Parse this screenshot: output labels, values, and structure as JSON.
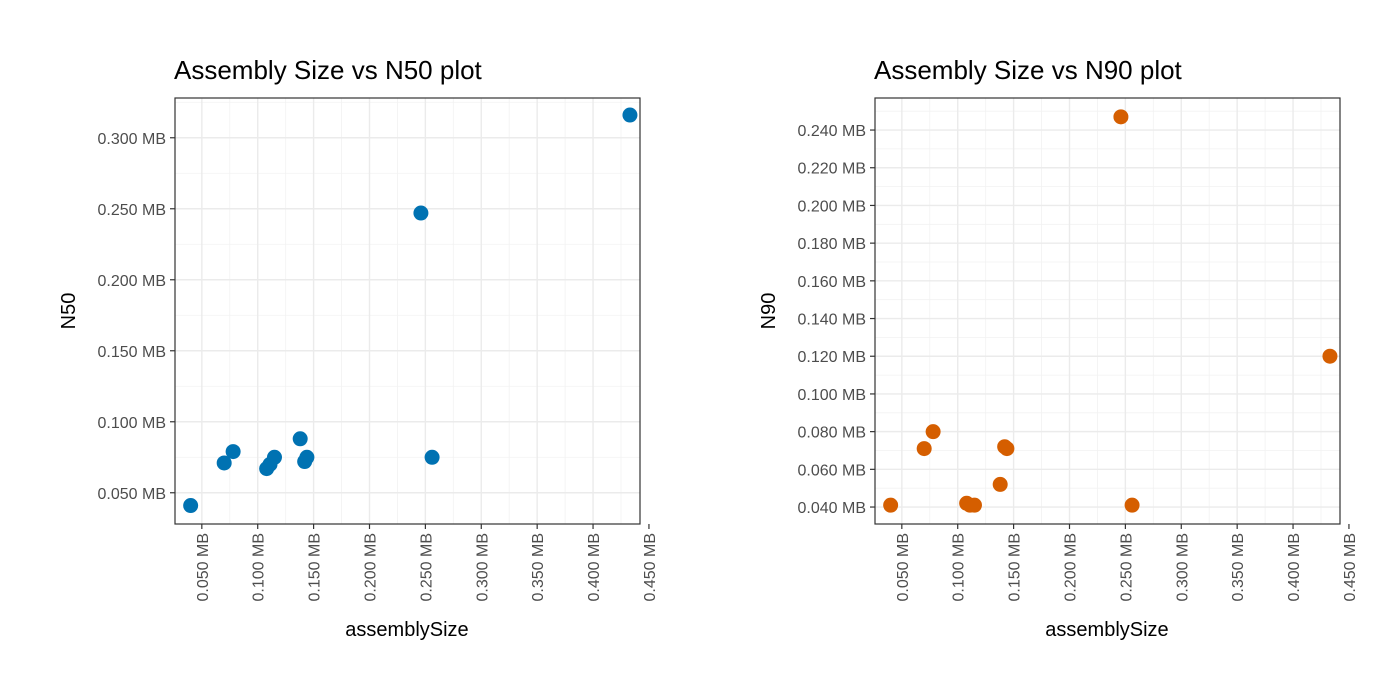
{
  "chart_data": [
    {
      "type": "scatter",
      "title": "Assembly Size vs N50 plot",
      "xlabel": "assemblySize",
      "ylabel": "N50",
      "color": "#0072B2",
      "xlim": [
        0.026,
        0.442
      ],
      "ylim": [
        0.028,
        0.328
      ],
      "x_ticks": [
        0.05,
        0.1,
        0.15,
        0.2,
        0.25,
        0.3,
        0.35,
        0.4,
        0.45
      ],
      "x_tick_labels": [
        "0.050 MB",
        "0.100 MB",
        "0.150 MB",
        "0.200 MB",
        "0.250 MB",
        "0.300 MB",
        "0.350 MB",
        "0.400 MB",
        "0.450 MB"
      ],
      "y_ticks": [
        0.05,
        0.1,
        0.15,
        0.2,
        0.25,
        0.3
      ],
      "y_tick_labels": [
        "0.050 MB",
        "0.100 MB",
        "0.150 MB",
        "0.200 MB",
        "0.250 MB",
        "0.300 MB"
      ],
      "grid": true,
      "points": [
        {
          "x": 0.04,
          "y": 0.041
        },
        {
          "x": 0.07,
          "y": 0.071
        },
        {
          "x": 0.078,
          "y": 0.079
        },
        {
          "x": 0.108,
          "y": 0.067
        },
        {
          "x": 0.111,
          "y": 0.07
        },
        {
          "x": 0.115,
          "y": 0.075
        },
        {
          "x": 0.138,
          "y": 0.088
        },
        {
          "x": 0.142,
          "y": 0.072
        },
        {
          "x": 0.144,
          "y": 0.075
        },
        {
          "x": 0.246,
          "y": 0.247
        },
        {
          "x": 0.256,
          "y": 0.075
        },
        {
          "x": 0.433,
          "y": 0.316
        }
      ]
    },
    {
      "type": "scatter",
      "title": "Assembly Size vs N90 plot",
      "xlabel": "assemblySize",
      "ylabel": "N90",
      "color": "#D55E00",
      "xlim": [
        0.026,
        0.442
      ],
      "ylim": [
        0.031,
        0.257
      ],
      "x_ticks": [
        0.05,
        0.1,
        0.15,
        0.2,
        0.25,
        0.3,
        0.35,
        0.4,
        0.45
      ],
      "x_tick_labels": [
        "0.050 MB",
        "0.100 MB",
        "0.150 MB",
        "0.200 MB",
        "0.250 MB",
        "0.300 MB",
        "0.350 MB",
        "0.400 MB",
        "0.450 MB"
      ],
      "y_ticks": [
        0.04,
        0.06,
        0.08,
        0.1,
        0.12,
        0.14,
        0.16,
        0.18,
        0.2,
        0.22,
        0.24
      ],
      "y_tick_labels": [
        "0.040 MB",
        "0.060 MB",
        "0.080 MB",
        "0.100 MB",
        "0.120 MB",
        "0.140 MB",
        "0.160 MB",
        "0.180 MB",
        "0.200 MB",
        "0.220 MB",
        "0.240 MB"
      ],
      "grid": true,
      "points": [
        {
          "x": 0.04,
          "y": 0.041
        },
        {
          "x": 0.07,
          "y": 0.071
        },
        {
          "x": 0.078,
          "y": 0.08
        },
        {
          "x": 0.108,
          "y": 0.042
        },
        {
          "x": 0.111,
          "y": 0.041
        },
        {
          "x": 0.115,
          "y": 0.041
        },
        {
          "x": 0.138,
          "y": 0.052
        },
        {
          "x": 0.142,
          "y": 0.072
        },
        {
          "x": 0.144,
          "y": 0.071
        },
        {
          "x": 0.246,
          "y": 0.247
        },
        {
          "x": 0.256,
          "y": 0.041
        },
        {
          "x": 0.433,
          "y": 0.12
        }
      ]
    }
  ]
}
